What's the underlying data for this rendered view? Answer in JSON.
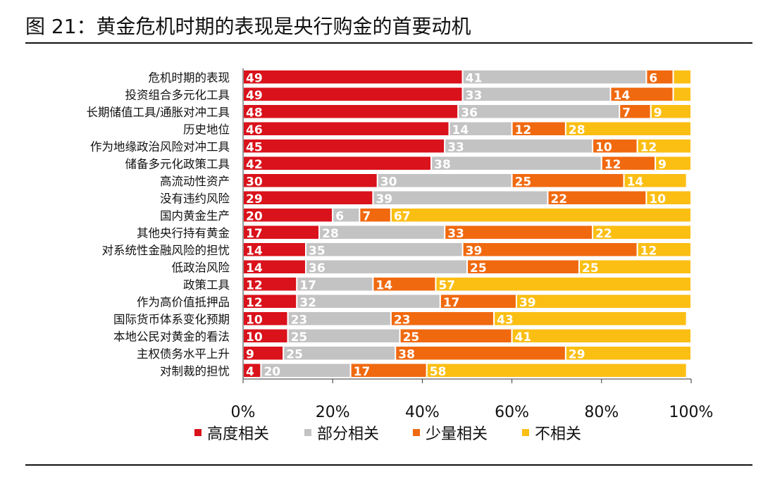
{
  "figure": {
    "title": "图 21：黄金危机时期的表现是央行购金的首要动机"
  },
  "chart_data": {
    "type": "bar",
    "orientation": "horizontal",
    "stacked": true,
    "percent_stacked": true,
    "categories": [
      "危机时期的表现",
      "投资组合多元化工具",
      "长期储值工具/通胀对冲工具",
      "历史地位",
      "作为地缘政治风险对冲工具",
      "储备多元化政策工具",
      "高流动性资产",
      "没有违约风险",
      "国内黄金生产",
      "其他央行持有黄金",
      "对系统性金融风险的担忧",
      "低政治风险",
      "政策工具",
      "作为高价值抵押品",
      "国际货币体系变化预期",
      "本地公民对黄金的看法",
      "主权债务水平上升",
      "对制裁的担忧"
    ],
    "series": [
      {
        "name": "高度相关",
        "color": "#d9121b",
        "values": [
          49,
          49,
          48,
          46,
          45,
          42,
          30,
          29,
          20,
          17,
          14,
          14,
          12,
          12,
          10,
          10,
          9,
          4
        ]
      },
      {
        "name": "部分相关",
        "color": "#c3c3c3",
        "values": [
          41,
          33,
          36,
          14,
          33,
          38,
          30,
          39,
          6,
          28,
          35,
          36,
          17,
          32,
          23,
          25,
          25,
          20
        ]
      },
      {
        "name": "少量相关",
        "color": "#f0690f",
        "values": [
          6,
          14,
          7,
          12,
          10,
          12,
          25,
          22,
          7,
          33,
          39,
          25,
          14,
          17,
          23,
          25,
          38,
          17
        ]
      },
      {
        "name": "不相关",
        "color": "#fbbe13",
        "values": [
          4,
          4,
          9,
          28,
          12,
          9,
          14,
          10,
          67,
          22,
          12,
          25,
          57,
          39,
          43,
          41,
          29,
          58
        ]
      }
    ],
    "value_labels_shown": [
      [
        true,
        true,
        true,
        false
      ],
      [
        true,
        true,
        true,
        false
      ],
      [
        true,
        true,
        true,
        true
      ],
      [
        true,
        true,
        true,
        true
      ],
      [
        true,
        true,
        true,
        true
      ],
      [
        true,
        true,
        true,
        true
      ],
      [
        true,
        true,
        true,
        true
      ],
      [
        true,
        true,
        true,
        true
      ],
      [
        true,
        true,
        true,
        true
      ],
      [
        true,
        true,
        true,
        true
      ],
      [
        true,
        true,
        true,
        true
      ],
      [
        true,
        true,
        true,
        true
      ],
      [
        true,
        true,
        true,
        true
      ],
      [
        true,
        true,
        true,
        true
      ],
      [
        true,
        true,
        true,
        true
      ],
      [
        true,
        true,
        true,
        true
      ],
      [
        true,
        true,
        true,
        true
      ],
      [
        true,
        true,
        true,
        true
      ]
    ],
    "xticks": [
      "0%",
      "20%",
      "40%",
      "60%",
      "80%",
      "100%"
    ],
    "xlim": [
      0,
      100
    ],
    "grid": false,
    "legend_position": "bottom"
  }
}
